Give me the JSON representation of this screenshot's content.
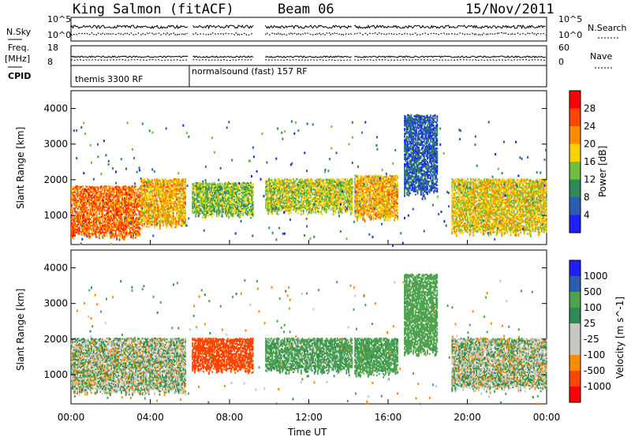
{
  "header": {
    "station": "King Salmon (fitACF)",
    "beam": "Beam 06",
    "date": "15/Nov/2011"
  },
  "top_panels": {
    "nsky_label": "N.Sky",
    "nsearch_label": "N.Search",
    "freq_label_1": "Freq.",
    "freq_label_2": "[MHz]",
    "nave_label": "Nave",
    "cpid_label": "CPID",
    "left_ticks_upper": [
      "10^5",
      "10^0"
    ],
    "right_ticks_upper": [
      "10^5",
      "10^0"
    ],
    "left_ticks_lower": [
      "18",
      "8"
    ],
    "right_ticks_lower": [
      "60",
      "0"
    ],
    "cpid_1": "themis 3300 RF",
    "cpid_2": "normalsound (fast) 157 RF"
  },
  "colors": {
    "power": [
      "#1e1eff",
      "#2a5fb0",
      "#2e8b57",
      "#6dbf3d",
      "#ffd000",
      "#ff8c00",
      "#ff4500",
      "#ff0000"
    ],
    "velocity": [
      "#ff0000",
      "#ff4500",
      "#ff8c00",
      "#c8c8c0",
      "#c8c8c0",
      "#2e8b57",
      "#4fa34f",
      "#2a5fb0",
      "#1e1eff"
    ]
  },
  "chart_data": [
    {
      "type": "heatmap",
      "panel": "power",
      "ylabel": "Slant Range [km]",
      "ylim": [
        180,
        4500
      ],
      "yticks": [
        "1000",
        "2000",
        "3000",
        "4000"
      ],
      "xlim": [
        0,
        24
      ],
      "colorbar_label": "Power [dB]",
      "colorbar_ticks": [
        "4",
        "8",
        "12",
        "16",
        "20",
        "24",
        "28"
      ],
      "regions": [
        {
          "t0": 0.0,
          "t1": 3.5,
          "r0": 300,
          "r1": 1800,
          "power": 26
        },
        {
          "t0": 3.5,
          "t1": 5.8,
          "r0": 600,
          "r1": 2000,
          "power": 22
        },
        {
          "t0": 6.1,
          "t1": 9.2,
          "r0": 900,
          "r1": 1900,
          "power": 16
        },
        {
          "t0": 9.8,
          "t1": 14.2,
          "r0": 1000,
          "r1": 2000,
          "power": 18
        },
        {
          "t0": 14.3,
          "t1": 16.5,
          "r0": 800,
          "r1": 2100,
          "power": 22
        },
        {
          "t0": 16.8,
          "t1": 18.5,
          "r0": 1500,
          "r1": 3800,
          "power": 8
        },
        {
          "t0": 19.2,
          "t1": 24.0,
          "r0": 400,
          "r1": 2000,
          "power": 20
        }
      ]
    },
    {
      "type": "heatmap",
      "panel": "velocity",
      "ylabel": "Slant Range [km]",
      "ylim": [
        180,
        4500
      ],
      "yticks": [
        "1000",
        "2000",
        "3000",
        "4000"
      ],
      "xlim": [
        0,
        24
      ],
      "xticks": [
        "00:00",
        "04:00",
        "08:00",
        "12:00",
        "16:00",
        "20:00",
        "00:00"
      ],
      "xlabel": "Time UT",
      "colorbar_label": "Velocity [m s^-1]",
      "colorbar_ticks": [
        "-1000",
        "-500",
        "-100",
        "-25",
        "25",
        "100",
        "500",
        "1000"
      ],
      "regions": [
        {
          "t0": 0.0,
          "t1": 5.8,
          "r0": 400,
          "r1": 2000,
          "velocity": 0
        },
        {
          "t0": 6.1,
          "t1": 9.2,
          "r0": 1000,
          "r1": 2000,
          "velocity": -700
        },
        {
          "t0": 9.8,
          "t1": 14.2,
          "r0": 1000,
          "r1": 2000,
          "velocity": 150
        },
        {
          "t0": 14.3,
          "t1": 16.5,
          "r0": 900,
          "r1": 2000,
          "velocity": 200
        },
        {
          "t0": 16.8,
          "t1": 18.5,
          "r0": 1500,
          "r1": 3800,
          "velocity": 300
        },
        {
          "t0": 19.2,
          "t1": 24.0,
          "r0": 500,
          "r1": 2000,
          "velocity": 0
        }
      ]
    }
  ]
}
